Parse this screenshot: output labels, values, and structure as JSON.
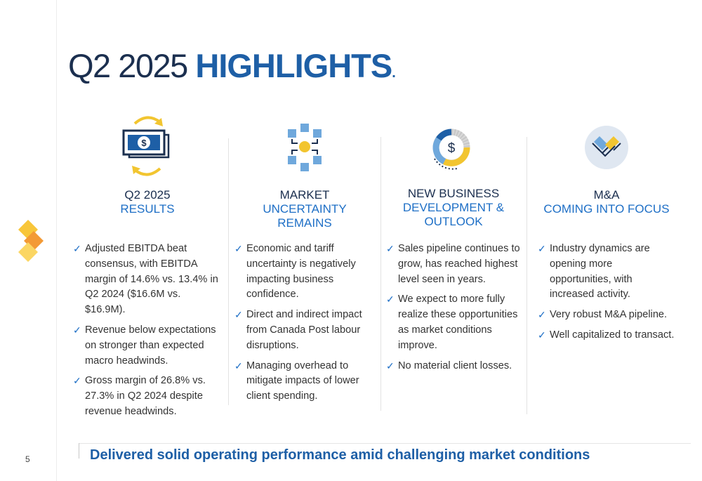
{
  "title": {
    "light": "Q2 2025 ",
    "bold": "HIGHLIGHTS",
    "dot": "."
  },
  "columns": [
    {
      "icon": "money-cycle-icon",
      "heading_line1": "Q2 2025",
      "heading_line2": "RESULTS",
      "heading_line3": "",
      "bullets": [
        "Adjusted EBITDA beat consensus, with EBITDA margin of 14.6% vs. 13.4% in Q2 2024 ($16.6M vs. $16.9M).",
        "Revenue below expectations on stronger than expected macro headwinds.",
        "Gross margin of 26.8% vs. 27.3% in Q2 2024 despite revenue headwinds."
      ]
    },
    {
      "icon": "network-hub-icon",
      "heading_line1": "MARKET",
      "heading_line2": "UNCERTAINTY REMAINS",
      "heading_line3": "",
      "bullets": [
        "Economic and tariff uncertainty is negatively impacting business confidence.",
        "Direct and indirect impact from Canada Post labour disruptions.",
        "Managing overhead to mitigate impacts of lower client spending."
      ]
    },
    {
      "icon": "dollar-donut-chart-icon",
      "heading_line1": "NEW BUSINESS",
      "heading_line2": "DEVELOPMENT &",
      "heading_line3": "OUTLOOK",
      "bullets": [
        "Sales pipeline continues to grow, has reached highest level seen in years.",
        "We expect to more fully realize these opportunities as market conditions improve.",
        "No material client losses."
      ]
    },
    {
      "icon": "handshake-icon",
      "heading_line1": "M&A",
      "heading_line2": "COMING INTO FOCUS",
      "heading_line3": "",
      "bullets": [
        "Industry dynamics are opening more opportunities, with increased activity.",
        "Very robust M&A pipeline.",
        "Well capitalized to transact."
      ]
    }
  ],
  "check_glyph": "✓",
  "footer": {
    "message": "Delivered solid operating performance amid challenging market conditions"
  },
  "page_number": "5",
  "colors": {
    "navy": "#1b2f4f",
    "blue": "#1e5fa6",
    "accent_blue": "#1e6fc6",
    "yellow": "#f2c530",
    "light_blue": "#6fa8dc"
  }
}
